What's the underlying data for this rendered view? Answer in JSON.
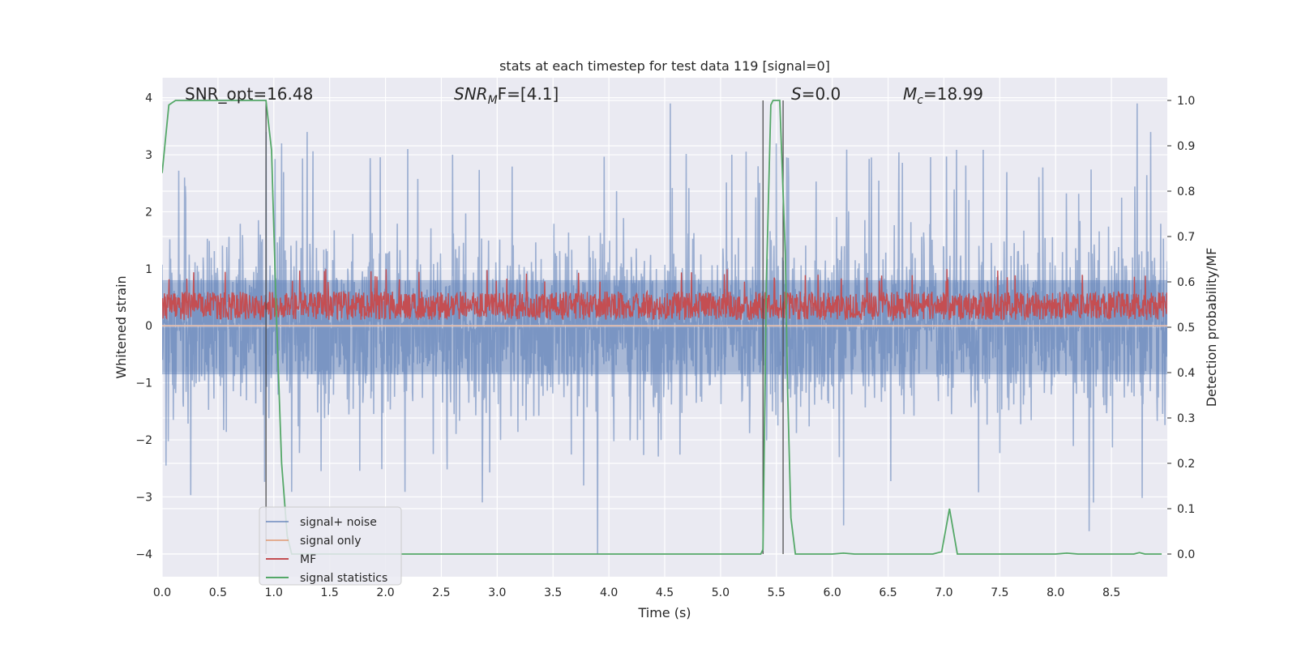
{
  "chart_data": {
    "type": "line",
    "title": "stats at each timestep for test data 119 [signal=0]",
    "xlabel": "Time (s)",
    "ylabel_left": "Whitened strain",
    "ylabel_right": "Detection probability/MF",
    "xlim": [
      0.0,
      9.0
    ],
    "ylim_left": [
      -4.4,
      4.35
    ],
    "ylim_right": [
      -0.05,
      1.05
    ],
    "xticks": [
      "0.0",
      "0.5",
      "1.0",
      "1.5",
      "2.0",
      "2.5",
      "3.0",
      "3.5",
      "4.0",
      "4.5",
      "5.0",
      "5.5",
      "6.0",
      "6.5",
      "7.0",
      "7.5",
      "8.0",
      "8.5"
    ],
    "yticks_left": [
      "4",
      "3",
      "2",
      "1",
      "0",
      "−1",
      "−2",
      "−3",
      "−4"
    ],
    "yticks_right": [
      "1.0",
      "0.9",
      "0.8",
      "0.7",
      "0.6",
      "0.5",
      "0.4",
      "0.3",
      "0.2",
      "0.1",
      "0.0"
    ],
    "grid": true,
    "legend_position": "lower-left",
    "annotations": {
      "snr_opt": "SNR_opt=16.48",
      "snr_mf_base": "SNR",
      "snr_mf_sub": "M",
      "snr_mf_tail": "F=[4.1]",
      "s_var": "S",
      "s_tail": "=0.0",
      "mc_var": "M",
      "mc_sub": "c",
      "mc_tail": "=18.99"
    },
    "series": [
      {
        "name": "signal+ noise",
        "color": "#4c72b0",
        "style": "random noise, std ≈0.75, spikes up to ≈4, dips to ≈-4",
        "peaks": [
          [
            0.2,
            2.6
          ],
          [
            0.93,
            3.4
          ],
          [
            1.07,
            3.2
          ],
          [
            1.3,
            3.4
          ],
          [
            2.2,
            3.1
          ],
          [
            2.6,
            3.0
          ],
          [
            3.9,
            -4.0
          ],
          [
            4.55,
            3.9
          ],
          [
            5.1,
            3.0
          ],
          [
            5.5,
            3.2
          ],
          [
            6.1,
            -3.5
          ],
          [
            8.3,
            -3.6
          ],
          [
            8.73,
            3.9
          ],
          [
            8.85,
            3.4
          ]
        ]
      },
      {
        "name": "signal only",
        "color": "#dd8452",
        "values_note": "flat at 0"
      },
      {
        "name": "MF",
        "color": "#c44e52",
        "style": "random band between ≈0.1 and ≈0.6, occasional spikes to ≈1.0"
      },
      {
        "name": "signal statistics",
        "color": "#55a868",
        "x": [
          0.0,
          0.06,
          0.12,
          0.2,
          0.5,
          0.7,
          0.9,
          0.93,
          0.98,
          1.02,
          1.07,
          1.12,
          1.16,
          1.25,
          2.0,
          3.0,
          4.0,
          5.0,
          5.36,
          5.38,
          5.41,
          5.45,
          5.47,
          5.5,
          5.53,
          5.58,
          5.6,
          5.63,
          5.67,
          5.75,
          6.0,
          6.1,
          6.2,
          6.5,
          6.9,
          6.98,
          7.05,
          7.12,
          7.2,
          7.5,
          8.0,
          8.1,
          8.2,
          8.5,
          8.7,
          8.75,
          8.8,
          8.95
        ],
        "values": [
          0.84,
          0.99,
          1.0,
          1.0,
          1.0,
          1.0,
          1.0,
          1.0,
          0.89,
          0.55,
          0.2,
          0.04,
          0.0,
          0.0,
          0.0,
          0.0,
          0.0,
          0.0,
          0.0,
          0.01,
          0.6,
          0.99,
          1.0,
          1.0,
          1.0,
          0.66,
          0.36,
          0.08,
          0.0,
          0.0,
          0.0,
          0.002,
          0.0,
          0.0,
          0.0,
          0.005,
          0.1,
          0.0,
          0.0,
          0.0,
          0.0,
          0.002,
          0.0,
          0.0,
          0.0,
          0.003,
          0.0,
          0.0
        ]
      }
    ],
    "vertical_markers_x": [
      0.93,
      5.38,
      5.56
    ],
    "hline_zero_left": 0.0
  }
}
